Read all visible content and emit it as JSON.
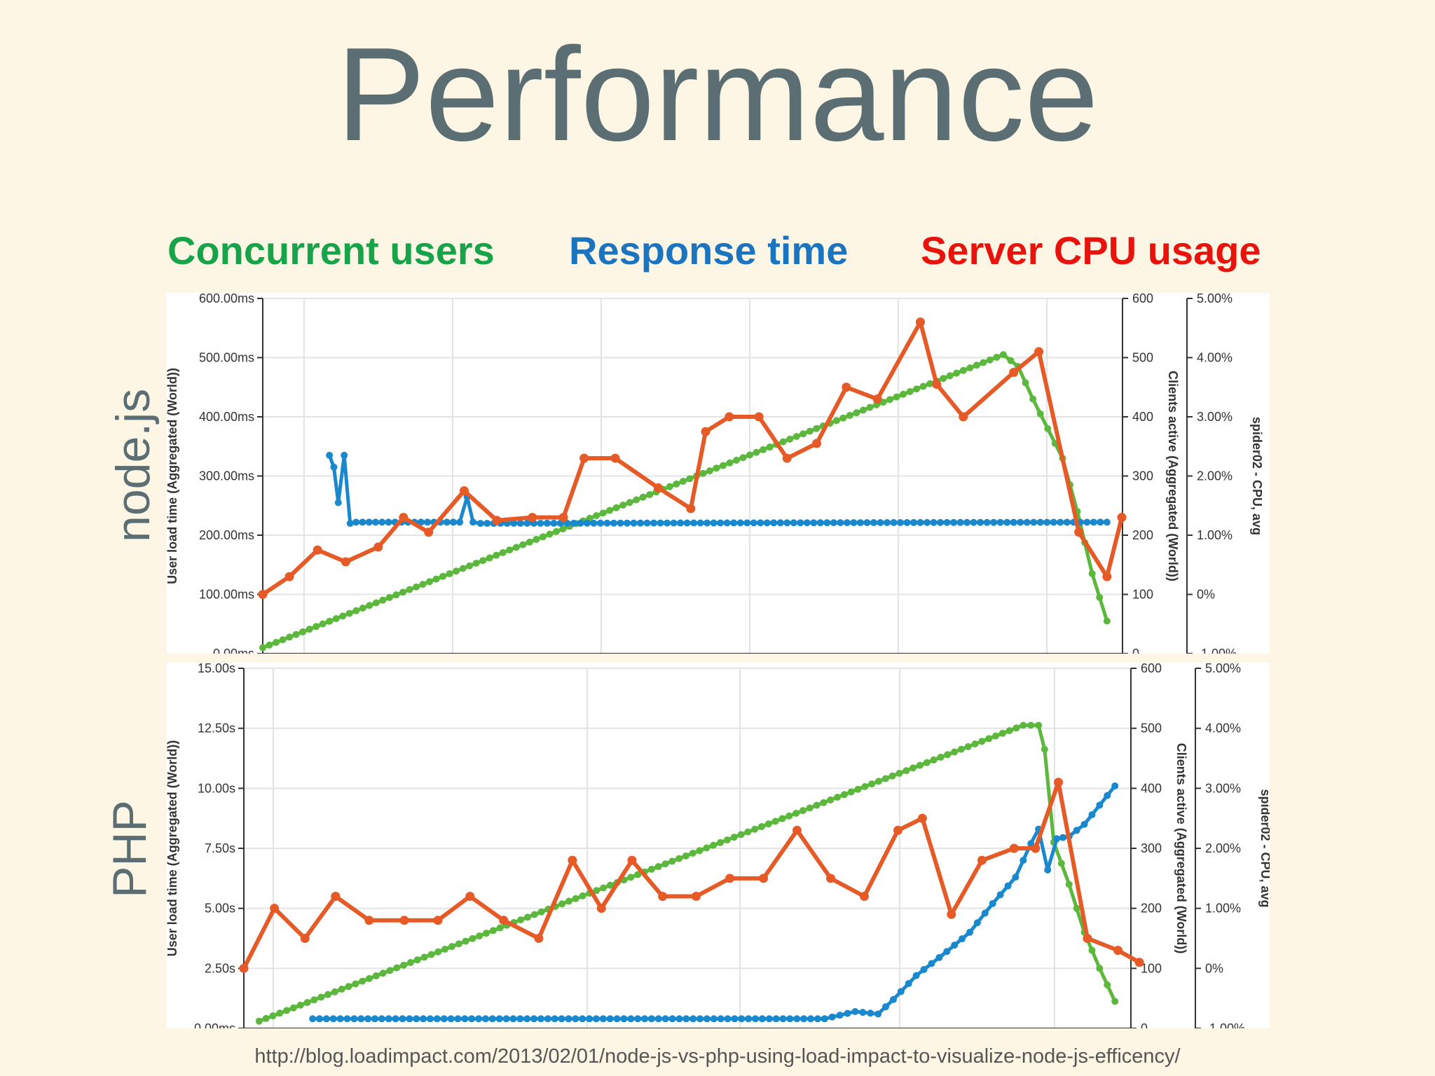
{
  "slide": {
    "title": "Performance",
    "legend": [
      {
        "label": "Concurrent users",
        "color": "#17a34a"
      },
      {
        "label": "Response time",
        "color": "#1b74c0"
      },
      {
        "label": "Server CPU usage",
        "color": "#e8130c"
      }
    ],
    "panel_labels": [
      "node.js",
      "PHP"
    ],
    "source_url": "http://blog.loadimpact.com/2013/02/01/node-js-vs-php-using-load-impact-to-visualize-node-js-efficency/"
  },
  "chart_data": [
    {
      "type": "line",
      "name": "node.js",
      "colors": {
        "clients": "#5cb83c",
        "response": "#1a88cc",
        "cpu": "#e55a26"
      },
      "axes": {
        "left": {
          "label": "User load time (Aggregated (World))",
          "ticks": [
            "0.00ms",
            "100.00ms",
            "200.00ms",
            "300.00ms",
            "400.00ms",
            "500.00ms",
            "600.00ms"
          ],
          "range": [
            0,
            600
          ]
        },
        "right1": {
          "label": "Clients active (Aggregated (World))",
          "ticks": [
            "0",
            "100",
            "200",
            "300",
            "400",
            "500",
            "600"
          ],
          "range": [
            0,
            600
          ]
        },
        "right2": {
          "label": "spider02 - CPU, avg",
          "ticks": [
            "-1.00%",
            "0%",
            "1.00%",
            "2.00%",
            "3.00%",
            "4.00%",
            "5.00%"
          ],
          "range": [
            -1,
            5
          ]
        }
      },
      "grid": true,
      "x_range": [
        0,
        58
      ],
      "series": [
        {
          "key": "clients",
          "axis": "right1",
          "x": [
            0,
            50,
            51,
            52,
            53,
            54,
            55,
            56,
            57
          ],
          "y": [
            10,
            505,
            485,
            430,
            380,
            330,
            240,
            135,
            55
          ]
        },
        {
          "key": "response",
          "axis": "left",
          "x": [
            4.5,
            4.8,
            5.1,
            5.5,
            5.9,
            6.3,
            12,
            13.3,
            13.8,
            14.2,
            14.7,
            57
          ],
          "y": [
            335,
            315,
            255,
            335,
            220,
            222,
            222,
            222,
            265,
            222,
            220,
            222
          ]
        },
        {
          "key": "cpu",
          "axis": "right2",
          "x": [
            0,
            1.8,
            3.7,
            5.6,
            7.8,
            9.5,
            11.2,
            13.6,
            15.8,
            18.2,
            20.3,
            21.7,
            23.8,
            26.7,
            28.9,
            29.9,
            31.5,
            33.5,
            35.4,
            37.4,
            39.4,
            41.5,
            44.4,
            45.5,
            47.3,
            50.7,
            52.4,
            55.1,
            57,
            58
          ],
          "y": [
            0,
            0.3,
            0.75,
            0.55,
            0.8,
            1.3,
            1.05,
            1.75,
            1.25,
            1.3,
            1.3,
            2.3,
            2.3,
            1.8,
            1.45,
            2.75,
            3.0,
            3.0,
            2.3,
            2.55,
            3.5,
            3.3,
            4.6,
            3.55,
            3.0,
            3.75,
            4.1,
            1.05,
            0.3,
            1.3
          ]
        }
      ]
    },
    {
      "type": "line",
      "name": "PHP",
      "colors": {
        "clients": "#5cb83c",
        "response": "#1a88cc",
        "cpu": "#e55a26"
      },
      "axes": {
        "left": {
          "label": "User load time (Aggregated (World))",
          "ticks": [
            "0.00ms",
            "2.50s",
            "5.00s",
            "7.50s",
            "10.00s",
            "12.50s",
            "15.00s"
          ],
          "range": [
            0,
            15
          ]
        },
        "right1": {
          "label": "Clients active (Aggregated (World))",
          "ticks": [
            "0",
            "100",
            "200",
            "300",
            "400",
            "500",
            "600"
          ],
          "range": [
            0,
            600
          ]
        },
        "right2": {
          "label": "spider02 - CPU, avg",
          "ticks": [
            "-1.00%",
            "0%",
            "1.00%",
            "2.00%",
            "3.00%",
            "4.00%",
            "5.00%"
          ],
          "range": [
            -1,
            5
          ]
        }
      },
      "grid": true,
      "x_range": [
        0,
        58
      ],
      "series": [
        {
          "key": "clients",
          "axis": "right1",
          "x": [
            1,
            51,
            52,
            52.4,
            53,
            54,
            55,
            56,
            57
          ],
          "y": [
            12,
            505,
            505,
            465,
            310,
            240,
            160,
            100,
            45
          ]
        },
        {
          "key": "response",
          "axis": "left",
          "x": [
            4.5,
            38,
            40,
            41.5,
            42.5,
            44,
            46,
            47.5,
            49,
            50.5,
            51.5,
            52,
            52.6,
            53.2,
            54,
            55,
            56,
            57
          ],
          "y": [
            0.4,
            0.4,
            0.7,
            0.6,
            1.2,
            2.2,
            3.2,
            4.0,
            5.2,
            6.3,
            7.7,
            8.3,
            6.6,
            7.9,
            8.0,
            8.5,
            9.3,
            10.1
          ]
        },
        {
          "key": "cpu",
          "axis": "right2",
          "x": [
            0,
            2,
            4,
            6,
            8.2,
            10.5,
            12.7,
            14.8,
            17,
            19.3,
            21.5,
            23.4,
            25.4,
            27.4,
            29.6,
            31.8,
            34,
            36.2,
            38.4,
            40.6,
            42.8,
            44.4,
            46.3,
            48.3,
            50.4,
            51.8,
            53.3,
            55.2,
            57.2,
            58.6
          ],
          "y": [
            0,
            1.0,
            0.5,
            1.2,
            0.8,
            0.8,
            0.8,
            1.2,
            0.8,
            0.5,
            1.8,
            1.0,
            1.8,
            1.2,
            1.2,
            1.5,
            1.5,
            2.3,
            1.5,
            1.2,
            2.3,
            2.5,
            0.9,
            1.8,
            2.0,
            2.0,
            3.1,
            0.5,
            0.3,
            0.1
          ]
        }
      ]
    }
  ]
}
